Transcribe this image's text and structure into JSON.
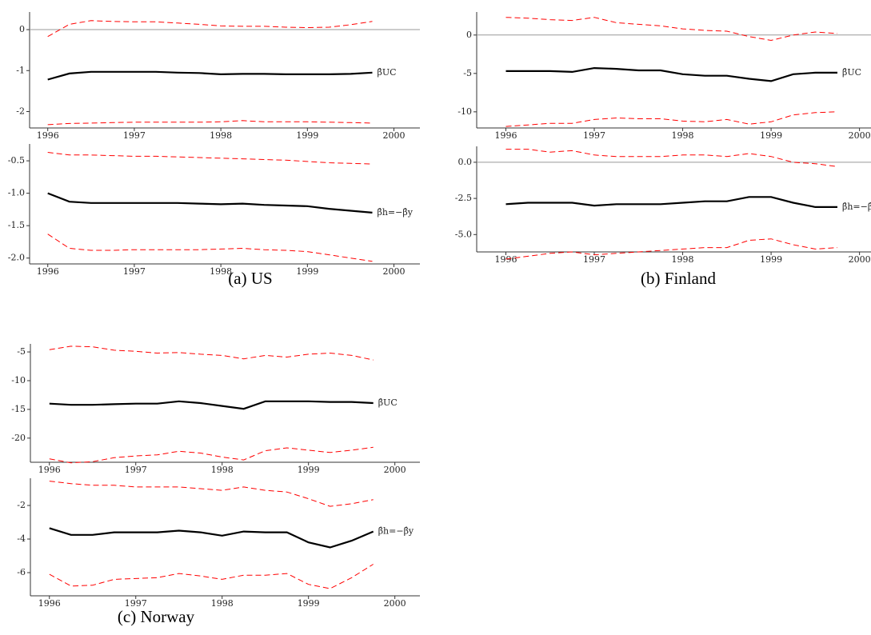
{
  "chart_data": [
    {
      "type": "line",
      "annotation": "β̂UC",
      "zero_line": true,
      "x": [
        1996,
        1996.25,
        1996.5,
        1996.75,
        1997,
        1997.25,
        1997.5,
        1997.75,
        1998,
        1998.25,
        1998.5,
        1998.75,
        1999,
        1999.25,
        1999.5,
        1999.75
      ],
      "xlim": [
        1995.79,
        2000.3
      ],
      "xticks": [
        1996,
        1997,
        1998,
        1999,
        2000
      ],
      "ylim": [
        -2.4,
        0.43
      ],
      "yticks": [
        -2,
        -1,
        0
      ],
      "series": [
        {
          "color": "#000000",
          "dash": false,
          "values": [
            -1.22,
            -1.07,
            -1.03,
            -1.03,
            -1.03,
            -1.03,
            -1.05,
            -1.06,
            -1.09,
            -1.08,
            -1.08,
            -1.09,
            -1.09,
            -1.09,
            -1.08,
            -1.05
          ]
        },
        {
          "color": "#ff0000",
          "dash": true,
          "values": [
            -0.17,
            0.13,
            0.22,
            0.2,
            0.19,
            0.19,
            0.16,
            0.13,
            0.09,
            0.08,
            0.08,
            0.06,
            0.05,
            0.06,
            0.12,
            0.2
          ]
        },
        {
          "color": "#ff0000",
          "dash": true,
          "values": [
            -2.32,
            -2.29,
            -2.28,
            -2.27,
            -2.26,
            -2.26,
            -2.26,
            -2.26,
            -2.25,
            -2.22,
            -2.25,
            -2.25,
            -2.25,
            -2.26,
            -2.27,
            -2.28
          ]
        }
      ]
    },
    {
      "type": "line",
      "annotation": "β̂h=−β̂y",
      "zero_line": false,
      "x": [
        1996,
        1996.25,
        1996.5,
        1996.75,
        1997,
        1997.25,
        1997.5,
        1997.75,
        1998,
        1998.25,
        1998.5,
        1998.75,
        1999,
        1999.25,
        1999.5,
        1999.75
      ],
      "xlim": [
        1995.79,
        2000.3
      ],
      "xticks": [
        1996,
        1997,
        1998,
        1999,
        2000
      ],
      "ylim": [
        -2.09,
        -0.24
      ],
      "yticks": [
        {
          "value": -0.5,
          "label": "-0.5"
        },
        {
          "value": -1,
          "label": "-1.0"
        },
        {
          "value": -1.5,
          "label": "-1.5"
        },
        {
          "value": -2,
          "label": "-2.0"
        }
      ],
      "series": [
        {
          "color": "#000000",
          "dash": false,
          "values": [
            -1.0,
            -1.13,
            -1.15,
            -1.15,
            -1.15,
            -1.15,
            -1.15,
            -1.16,
            -1.17,
            -1.16,
            -1.18,
            -1.19,
            -1.2,
            -1.24,
            -1.27,
            -1.3
          ]
        },
        {
          "color": "#ff0000",
          "dash": true,
          "values": [
            -0.37,
            -0.41,
            -0.41,
            -0.42,
            -0.43,
            -0.43,
            -0.44,
            -0.45,
            -0.46,
            -0.47,
            -0.48,
            -0.49,
            -0.51,
            -0.53,
            -0.54,
            -0.55
          ]
        },
        {
          "color": "#ff0000",
          "dash": true,
          "values": [
            -1.63,
            -1.85,
            -1.88,
            -1.88,
            -1.87,
            -1.87,
            -1.87,
            -1.87,
            -1.86,
            -1.85,
            -1.87,
            -1.88,
            -1.9,
            -1.95,
            -2.0,
            -2.05
          ]
        }
      ]
    },
    {
      "type": "line",
      "annotation": "β̂UC",
      "zero_line": true,
      "x": [
        1996,
        1996.25,
        1996.5,
        1996.75,
        1997,
        1997.25,
        1997.5,
        1997.75,
        1998,
        1998.25,
        1998.5,
        1998.75,
        1999,
        1999.25,
        1999.5,
        1999.75
      ],
      "xlim": [
        1995.67,
        2000.13
      ],
      "xticks": [
        1996,
        1997,
        1998,
        1999,
        2000
      ],
      "ylim": [
        -12.1,
        3
      ],
      "yticks": [
        -10,
        -5,
        0
      ],
      "series": [
        {
          "color": "#000000",
          "dash": false,
          "values": [
            -4.7,
            -4.7,
            -4.7,
            -4.8,
            -4.3,
            -4.4,
            -4.6,
            -4.6,
            -5.1,
            -5.3,
            -5.3,
            -5.7,
            -6.0,
            -5.1,
            -4.9,
            -4.9
          ]
        },
        {
          "color": "#ff0000",
          "dash": true,
          "values": [
            2.3,
            2.2,
            2.0,
            1.9,
            2.3,
            1.6,
            1.4,
            1.2,
            0.8,
            0.6,
            0.5,
            -0.2,
            -0.7,
            0.0,
            0.4,
            0.2
          ]
        },
        {
          "color": "#ff0000",
          "dash": true,
          "values": [
            -11.9,
            -11.7,
            -11.5,
            -11.5,
            -11.0,
            -10.8,
            -10.9,
            -10.9,
            -11.2,
            -11.3,
            -11.0,
            -11.6,
            -11.3,
            -10.4,
            -10.1,
            -10.0
          ]
        }
      ]
    },
    {
      "type": "line",
      "annotation": "β̂h=−β̂",
      "zero_line": true,
      "x": [
        1996,
        1996.25,
        1996.5,
        1996.75,
        1997,
        1997.25,
        1997.5,
        1997.75,
        1998,
        1998.25,
        1998.5,
        1998.75,
        1999,
        1999.25,
        1999.5,
        1999.75
      ],
      "xlim": [
        1995.67,
        2000.13
      ],
      "xticks": [
        1996,
        1997,
        1998,
        1999,
        2000
      ],
      "ylim": [
        -6.2,
        1.1
      ],
      "yticks": [
        {
          "value": 0,
          "label": "0.0"
        },
        {
          "value": -2.5,
          "label": "-2.5"
        },
        {
          "value": -5,
          "label": "-5.0"
        }
      ],
      "series": [
        {
          "color": "#000000",
          "dash": false,
          "values": [
            -2.9,
            -2.8,
            -2.8,
            -2.8,
            -3.0,
            -2.9,
            -2.9,
            -2.9,
            -2.8,
            -2.7,
            -2.7,
            -2.4,
            -2.4,
            -2.8,
            -3.1,
            -3.1
          ]
        },
        {
          "color": "#ff0000",
          "dash": true,
          "values": [
            0.9,
            0.9,
            0.7,
            0.8,
            0.5,
            0.4,
            0.4,
            0.4,
            0.5,
            0.5,
            0.4,
            0.6,
            0.4,
            0.0,
            -0.1,
            -0.3
          ]
        },
        {
          "color": "#ff0000",
          "dash": true,
          "values": [
            -6.7,
            -6.5,
            -6.3,
            -6.2,
            -6.4,
            -6.3,
            -6.2,
            -6.1,
            -6.0,
            -5.9,
            -5.9,
            -5.4,
            -5.3,
            -5.7,
            -6.0,
            -5.9
          ]
        }
      ]
    },
    {
      "type": "line",
      "annotation": "β̂UC",
      "zero_line": false,
      "x": [
        1996,
        1996.25,
        1996.5,
        1996.75,
        1997,
        1997.25,
        1997.5,
        1997.75,
        1998,
        1998.25,
        1998.5,
        1998.75,
        1999,
        1999.25,
        1999.5,
        1999.75
      ],
      "xlim": [
        1995.78,
        2000.29
      ],
      "xticks": [
        1996,
        1997,
        1998,
        1999,
        2000
      ],
      "ylim": [
        -24.2,
        -3.6
      ],
      "yticks": [
        -20,
        -15,
        -10,
        -5
      ],
      "series": [
        {
          "color": "#000000",
          "dash": false,
          "values": [
            -14,
            -14.2,
            -14.2,
            -14.1,
            -14.0,
            -14.0,
            -13.6,
            -13.9,
            -14.4,
            -14.9,
            -13.6,
            -13.6,
            -13.6,
            -13.7,
            -13.7,
            -13.9
          ]
        },
        {
          "color": "#ff0000",
          "dash": true,
          "values": [
            -4.6,
            -4.0,
            -4.1,
            -4.7,
            -4.9,
            -5.2,
            -5.1,
            -5.4,
            -5.6,
            -6.2,
            -5.6,
            -5.9,
            -5.4,
            -5.2,
            -5.6,
            -6.4
          ]
        },
        {
          "color": "#ff0000",
          "dash": true,
          "values": [
            -23.6,
            -24.3,
            -24.1,
            -23.4,
            -23.1,
            -22.9,
            -22.3,
            -22.6,
            -23.3,
            -23.8,
            -22.2,
            -21.7,
            -22.1,
            -22.5,
            -22.1,
            -21.6
          ]
        }
      ]
    },
    {
      "type": "line",
      "annotation": "β̂h=−β̂y",
      "zero_line": false,
      "x": [
        1996,
        1996.25,
        1996.5,
        1996.75,
        1997,
        1997.25,
        1997.5,
        1997.75,
        1998,
        1998.25,
        1998.5,
        1998.75,
        1999,
        1999.25,
        1999.5,
        1999.75
      ],
      "xlim": [
        1995.78,
        2000.29
      ],
      "xticks": [
        1996,
        1997,
        1998,
        1999,
        2000
      ],
      "ylim": [
        -7.38,
        -0.38
      ],
      "yticks": [
        -6,
        -4,
        -2
      ],
      "series": [
        {
          "color": "#000000",
          "dash": false,
          "values": [
            -3.35,
            -3.75,
            -3.75,
            -3.6,
            -3.6,
            -3.6,
            -3.5,
            -3.6,
            -3.8,
            -3.55,
            -3.6,
            -3.6,
            -4.2,
            -4.5,
            -4.1,
            -3.55
          ]
        },
        {
          "color": "#ff0000",
          "dash": true,
          "values": [
            -0.55,
            -0.7,
            -0.8,
            -0.8,
            -0.9,
            -0.9,
            -0.9,
            -1.0,
            -1.1,
            -0.9,
            -1.1,
            -1.2,
            -1.6,
            -2.05,
            -1.9,
            -1.65
          ]
        },
        {
          "color": "#ff0000",
          "dash": true,
          "values": [
            -6.1,
            -6.8,
            -6.75,
            -6.4,
            -6.35,
            -6.3,
            -6.05,
            -6.2,
            -6.4,
            -6.15,
            -6.15,
            -6.05,
            -6.7,
            -6.95,
            -6.3,
            -5.5
          ]
        }
      ]
    }
  ],
  "captions": [
    "(a) US",
    "(b) Finland",
    "(c) Norway"
  ]
}
